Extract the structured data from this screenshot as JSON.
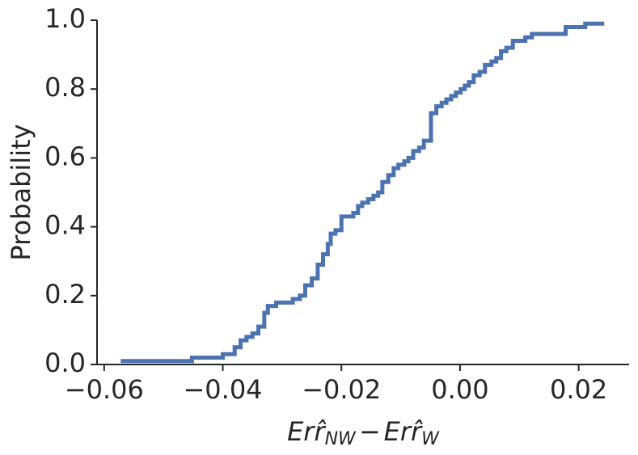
{
  "chart_data": {
    "type": "step",
    "color": "#4c72b0",
    "xlabel": [
      "Err̂",
      "NW",
      "−",
      "Err̂",
      "W"
    ],
    "ylabel": "Probability",
    "xlim": [
      -0.0612,
      0.0285
    ],
    "ylim": [
      0,
      1
    ],
    "xticks": [
      {
        "value": -0.06,
        "label": "−0.06"
      },
      {
        "value": -0.04,
        "label": "−0.04"
      },
      {
        "value": -0.02,
        "label": "−0.02"
      },
      {
        "value": 0,
        "label": "0.00"
      },
      0.02
    ],
    "yticks": [
      {
        "value": 0,
        "label": "0.0"
      },
      0.2,
      0.4,
      0.6,
      0.8,
      {
        "value": 1,
        "label": "1.0"
      }
    ],
    "x": [
      -0.0572,
      -0.0452,
      -0.04,
      -0.038,
      -0.037,
      -0.036,
      -0.035,
      -0.034,
      -0.033,
      -0.0324,
      -0.031,
      -0.0282,
      -0.027,
      -0.0261,
      -0.025,
      -0.024,
      -0.0231,
      -0.0223,
      -0.0218,
      -0.021,
      -0.02,
      -0.018,
      -0.0172,
      -0.0165,
      -0.0155,
      -0.0146,
      -0.0138,
      -0.0131,
      -0.0121,
      -0.0112,
      -0.0104,
      -0.0094,
      -0.0087,
      -0.0079,
      -0.0069,
      -0.0061,
      -0.0049,
      -0.004,
      -0.0031,
      -0.0023,
      -0.0015,
      -0.0007,
      0.0001,
      0.0008,
      0.0015,
      0.0023,
      0.0033,
      0.0042,
      0.0053,
      0.0061,
      0.0069,
      0.0078,
      0.0089,
      0.011,
      0.0121,
      0.0178,
      0.0211,
      0.0243
    ],
    "values": [
      0.01,
      0.02,
      0.03,
      0.05,
      0.07,
      0.08,
      0.09,
      0.11,
      0.15,
      0.17,
      0.18,
      0.19,
      0.2,
      0.23,
      0.25,
      0.29,
      0.32,
      0.35,
      0.38,
      0.39,
      0.43,
      0.44,
      0.46,
      0.47,
      0.48,
      0.49,
      0.5,
      0.53,
      0.55,
      0.57,
      0.58,
      0.59,
      0.6,
      0.62,
      0.63,
      0.65,
      0.73,
      0.75,
      0.76,
      0.77,
      0.78,
      0.79,
      0.8,
      0.81,
      0.82,
      0.84,
      0.85,
      0.87,
      0.88,
      0.89,
      0.91,
      0.92,
      0.94,
      0.95,
      0.96,
      0.98,
      0.99,
      0.99
    ]
  }
}
